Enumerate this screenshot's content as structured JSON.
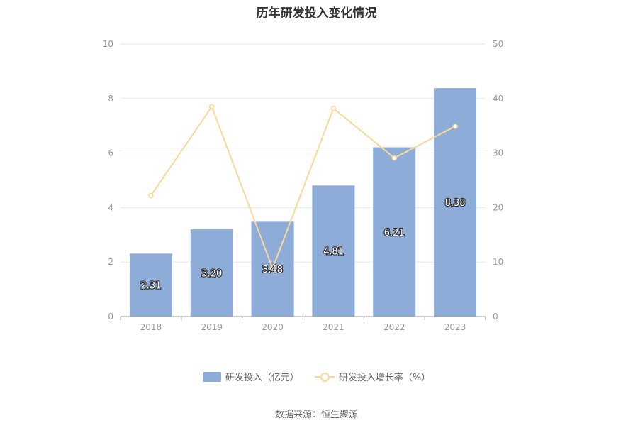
{
  "chart_data": {
    "type": "bar",
    "title": "历年研发投入变化情况",
    "categories": [
      "2018",
      "2019",
      "2020",
      "2021",
      "2022",
      "2023"
    ],
    "series": [
      {
        "name": "研发投入（亿元）",
        "type": "bar",
        "axis": "left",
        "values": [
          2.31,
          3.2,
          3.48,
          4.81,
          6.21,
          8.38
        ],
        "labels": [
          "2.31",
          "3.20",
          "3.48",
          "4.81",
          "6.21",
          "8.38"
        ],
        "color": "#8eacd8"
      },
      {
        "name": "研发投入增长率（%）",
        "type": "line",
        "axis": "right",
        "values": [
          22.2,
          38.5,
          8.8,
          38.2,
          29.1,
          34.9
        ],
        "color": "#f9d898"
      }
    ],
    "y_left": {
      "ylim": [
        0,
        10
      ],
      "ticks": [
        "0",
        "2",
        "4",
        "6",
        "8",
        "10"
      ]
    },
    "y_right": {
      "ylim": [
        0,
        50
      ],
      "ticks": [
        "0",
        "10",
        "20",
        "30",
        "40",
        "50"
      ]
    },
    "grid": true,
    "legend": "bottom"
  },
  "source": "数据来源：恒生聚源"
}
